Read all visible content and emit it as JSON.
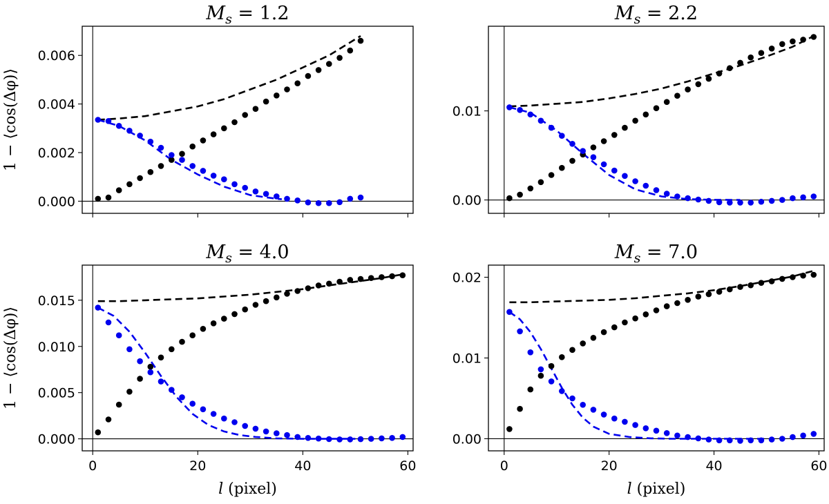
{
  "chart_data": [
    {
      "type": "scatter",
      "title": "M_s = 1.2",
      "title_parts": {
        "symbol": "M",
        "subscript": "s",
        "value": "1.2"
      },
      "xlabel": "",
      "ylabel": "1 − ⟨cos(Δφ)⟩",
      "xlim": [
        -2,
        61
      ],
      "ylim": [
        -0.0005,
        0.0072
      ],
      "xticks": [
        0,
        20,
        40,
        60
      ],
      "xtick_labels": [
        "",
        "",
        "",
        ""
      ],
      "yticks": [
        0,
        0.002,
        0.004,
        0.006
      ],
      "ytick_labels": [
        "0.000",
        "0.002",
        "0.004",
        "0.006"
      ],
      "series": [
        {
          "name": "black data",
          "style": "dots",
          "color": "#000000",
          "x": [
            1,
            3,
            5,
            7,
            9,
            11,
            13,
            15,
            17,
            19,
            21,
            23,
            25,
            27,
            29,
            31,
            33,
            35,
            37,
            39,
            41,
            43,
            45,
            47,
            49,
            51
          ],
          "y": [
            0.0001,
            0.00015,
            0.00045,
            0.0007,
            0.00095,
            0.0012,
            0.00145,
            0.0017,
            0.00195,
            0.00225,
            0.0025,
            0.00275,
            0.003,
            0.00325,
            0.00355,
            0.0038,
            0.0041,
            0.00435,
            0.0046,
            0.00485,
            0.00515,
            0.0054,
            0.00565,
            0.0059,
            0.0062,
            0.0066
          ]
        },
        {
          "name": "blue data",
          "style": "dots",
          "color": "#0000ee",
          "x": [
            1,
            3,
            5,
            7,
            9,
            11,
            13,
            15,
            17,
            19,
            21,
            23,
            25,
            27,
            29,
            31,
            33,
            35,
            37,
            39,
            41,
            43,
            45,
            47,
            49,
            51
          ],
          "y": [
            0.00335,
            0.0033,
            0.0031,
            0.0029,
            0.0027,
            0.00245,
            0.0022,
            0.0019,
            0.0017,
            0.00145,
            0.00125,
            0.00105,
            0.0009,
            0.0007,
            0.00055,
            0.0004,
            0.0003,
            0.0002,
            0.0001,
            3e-05,
            -5e-05,
            -8e-05,
            -8e-05,
            -4e-05,
            0.0001,
            0.00015
          ]
        },
        {
          "name": "black model",
          "style": "dashed",
          "color": "#000000",
          "x": [
            1,
            5,
            10,
            15,
            20,
            25,
            30,
            35,
            40,
            45,
            51
          ],
          "y": [
            0.00335,
            0.0034,
            0.0035,
            0.0037,
            0.0039,
            0.0042,
            0.0046,
            0.005,
            0.0055,
            0.006,
            0.0068
          ]
        },
        {
          "name": "blue model",
          "style": "dashed",
          "color": "#0000ee",
          "x": [
            1,
            5,
            10,
            15,
            20,
            25,
            30,
            35,
            36
          ],
          "y": [
            0.00335,
            0.0031,
            0.0025,
            0.0017,
            0.0011,
            0.0006,
            0.00025,
            0.0001,
            8e-05
          ]
        }
      ]
    },
    {
      "type": "scatter",
      "title": "M_s = 2.2",
      "title_parts": {
        "symbol": "M",
        "subscript": "s",
        "value": "2.2"
      },
      "xlabel": "",
      "ylabel": "",
      "xlim": [
        -3,
        61
      ],
      "ylim": [
        -0.0015,
        0.0195
      ],
      "xticks": [
        0,
        20,
        40,
        60
      ],
      "xtick_labels": [
        "",
        "",
        "",
        ""
      ],
      "yticks": [
        0,
        0.01
      ],
      "ytick_labels": [
        "0.00",
        "0.01"
      ],
      "series": [
        {
          "name": "black data",
          "style": "dots",
          "color": "#000000",
          "x": [
            1,
            3,
            5,
            7,
            9,
            11,
            13,
            15,
            17,
            19,
            21,
            23,
            25,
            27,
            29,
            31,
            33,
            35,
            37,
            39,
            41,
            43,
            45,
            47,
            49,
            51,
            53,
            55,
            57,
            59
          ],
          "y": [
            0.0002,
            0.0006,
            0.0013,
            0.002,
            0.0028,
            0.0036,
            0.0044,
            0.0051,
            0.0059,
            0.0066,
            0.0073,
            0.0081,
            0.0089,
            0.0096,
            0.0103,
            0.011,
            0.0117,
            0.0124,
            0.013,
            0.0136,
            0.0142,
            0.0148,
            0.0154,
            0.016,
            0.0165,
            0.017,
            0.0175,
            0.0178,
            0.018,
            0.0183
          ]
        },
        {
          "name": "blue data",
          "style": "dots",
          "color": "#0000ee",
          "x": [
            1,
            3,
            5,
            7,
            9,
            11,
            13,
            15,
            17,
            19,
            21,
            23,
            25,
            27,
            29,
            31,
            33,
            35,
            37,
            39,
            41,
            43,
            45,
            47,
            49,
            51,
            53,
            55,
            57,
            59
          ],
          "y": [
            0.0104,
            0.0101,
            0.0096,
            0.0089,
            0.0081,
            0.0072,
            0.0063,
            0.0055,
            0.0048,
            0.004,
            0.0033,
            0.0027,
            0.0021,
            0.0016,
            0.0011,
            0.0007,
            0.0004,
            0.0002,
            5e-05,
            -0.0001,
            -0.00025,
            -0.0003,
            -0.0003,
            -0.0003,
            -0.0002,
            -0.0001,
            0,
            0.0002,
            0.0003,
            0.0004
          ]
        },
        {
          "name": "black model",
          "style": "dashed",
          "color": "#000000",
          "x": [
            1,
            5,
            10,
            15,
            20,
            25,
            30,
            35,
            40,
            45,
            50,
            55,
            59
          ],
          "y": [
            0.0105,
            0.0106,
            0.0108,
            0.011,
            0.0114,
            0.0119,
            0.0125,
            0.0133,
            0.0142,
            0.0151,
            0.0161,
            0.0172,
            0.0184
          ]
        },
        {
          "name": "blue model",
          "style": "dashed",
          "color": "#0000ee",
          "x": [
            1,
            5,
            10,
            15,
            20,
            25,
            30,
            35,
            40,
            45
          ],
          "y": [
            0.0104,
            0.0098,
            0.0078,
            0.0052,
            0.0028,
            0.0012,
            0.0004,
            0.0001,
            2e-05,
            0
          ]
        }
      ]
    },
    {
      "type": "scatter",
      "title": "M_s = 4.0",
      "title_parts": {
        "symbol": "M",
        "subscript": "s",
        "value": "4.0"
      },
      "xlabel": "l (pixel)",
      "xlabel_parts": {
        "symbol": "l",
        "unit": "(pixel)"
      },
      "ylabel": "1 − ⟨cos(Δφ)⟩",
      "xlim": [
        -2,
        61
      ],
      "ylim": [
        -0.0013,
        0.0188
      ],
      "xticks": [
        0,
        20,
        40,
        60
      ],
      "xtick_labels": [
        "0",
        "20",
        "40",
        "60"
      ],
      "yticks": [
        0,
        0.005,
        0.01,
        0.015
      ],
      "ytick_labels": [
        "0.000",
        "0.005",
        "0.010",
        "0.015"
      ],
      "series": [
        {
          "name": "black data",
          "style": "dots",
          "color": "#000000",
          "x": [
            1,
            3,
            5,
            7,
            9,
            11,
            13,
            15,
            17,
            19,
            21,
            23,
            25,
            27,
            29,
            31,
            33,
            35,
            37,
            39,
            41,
            43,
            45,
            47,
            49,
            51,
            53,
            55,
            57,
            59
          ],
          "y": [
            0.0007,
            0.0021,
            0.0037,
            0.0051,
            0.0065,
            0.0078,
            0.0088,
            0.0097,
            0.0105,
            0.0112,
            0.0119,
            0.0125,
            0.013,
            0.0135,
            0.014,
            0.0145,
            0.0149,
            0.0153,
            0.0157,
            0.016,
            0.0163,
            0.0166,
            0.0168,
            0.017,
            0.0172,
            0.0173,
            0.0174,
            0.0175,
            0.0176,
            0.0177
          ]
        },
        {
          "name": "blue data",
          "style": "dots",
          "color": "#0000ee",
          "x": [
            1,
            3,
            5,
            7,
            9,
            11,
            13,
            15,
            17,
            19,
            21,
            23,
            25,
            27,
            29,
            31,
            33,
            35,
            37,
            39,
            41,
            43,
            45,
            47,
            49,
            51,
            53,
            55,
            57,
            59
          ],
          "y": [
            0.0142,
            0.0126,
            0.0112,
            0.0097,
            0.0084,
            0.0072,
            0.0062,
            0.0053,
            0.0045,
            0.0038,
            0.0032,
            0.0027,
            0.0022,
            0.0018,
            0.0014,
            0.0011,
            0.0008,
            0.0006,
            0.0004,
            0.0002,
            0.0001,
            3e-05,
            -3e-05,
            -6e-05,
            -6e-05,
            -4e-05,
            0,
            5e-05,
            0.0001,
            0.0002
          ]
        },
        {
          "name": "black model",
          "style": "dashed",
          "color": "#000000",
          "x": [
            1,
            5,
            10,
            15,
            20,
            25,
            30,
            35,
            40,
            45,
            50,
            55,
            59
          ],
          "y": [
            0.0149,
            0.0149,
            0.015,
            0.0151,
            0.0152,
            0.0154,
            0.0156,
            0.0159,
            0.0162,
            0.0166,
            0.017,
            0.0174,
            0.0178
          ]
        },
        {
          "name": "blue model",
          "style": "dashed",
          "color": "#0000ee",
          "x": [
            1,
            4,
            7,
            10,
            13,
            16,
            19,
            22,
            25,
            28,
            31,
            35,
            40,
            45,
            50
          ],
          "y": [
            0.0142,
            0.0133,
            0.0116,
            0.0093,
            0.0068,
            0.0045,
            0.0027,
            0.0015,
            0.0008,
            0.0004,
            0.0002,
            5e-05,
            0,
            0,
            0
          ]
        }
      ]
    },
    {
      "type": "scatter",
      "title": "M_s = 7.0",
      "title_parts": {
        "symbol": "M",
        "subscript": "s",
        "value": "7.0"
      },
      "xlabel": "l (pixel)",
      "xlabel_parts": {
        "symbol": "l",
        "unit": "(pixel)"
      },
      "ylabel": "",
      "xlim": [
        -3,
        61
      ],
      "ylim": [
        -0.0015,
        0.0215
      ],
      "xticks": [
        0,
        20,
        40,
        60
      ],
      "xtick_labels": [
        "0",
        "20",
        "40",
        "60"
      ],
      "yticks": [
        0,
        0.01,
        0.02
      ],
      "ytick_labels": [
        "0.00",
        "0.01",
        "0.02"
      ],
      "series": [
        {
          "name": "black data",
          "style": "dots",
          "color": "#000000",
          "x": [
            1,
            3,
            5,
            7,
            9,
            11,
            13,
            15,
            17,
            19,
            21,
            23,
            25,
            27,
            29,
            31,
            33,
            35,
            37,
            39,
            41,
            43,
            45,
            47,
            49,
            51,
            53,
            55,
            57,
            59
          ],
          "y": [
            0.0012,
            0.0037,
            0.0061,
            0.0078,
            0.009,
            0.0101,
            0.011,
            0.0118,
            0.0125,
            0.0132,
            0.0138,
            0.0144,
            0.0149,
            0.0154,
            0.0159,
            0.0164,
            0.0168,
            0.0172,
            0.0176,
            0.0179,
            0.0182,
            0.0185,
            0.0188,
            0.019,
            0.0193,
            0.0195,
            0.0198,
            0.02,
            0.0202,
            0.0203
          ]
        },
        {
          "name": "blue data",
          "style": "dots",
          "color": "#0000ee",
          "x": [
            1,
            3,
            5,
            7,
            9,
            11,
            13,
            15,
            17,
            19,
            21,
            23,
            25,
            27,
            29,
            31,
            33,
            35,
            37,
            39,
            41,
            43,
            45,
            47,
            49,
            51,
            53,
            55,
            57,
            59
          ],
          "y": [
            0.0157,
            0.0133,
            0.0107,
            0.0086,
            0.0071,
            0.0059,
            0.005,
            0.0042,
            0.0036,
            0.003,
            0.0025,
            0.0021,
            0.0017,
            0.0013,
            0.001,
            0.0007,
            0.0004,
            0.0002,
            5e-05,
            -0.0001,
            -0.0002,
            -0.0002,
            -0.00025,
            -0.0002,
            -0.0002,
            -0.0001,
            0,
            0.0002,
            0.0004,
            0.0006
          ]
        },
        {
          "name": "black model",
          "style": "dashed",
          "color": "#000000",
          "x": [
            1,
            5,
            10,
            15,
            20,
            25,
            30,
            35,
            40,
            45,
            50,
            55,
            59
          ],
          "y": [
            0.0169,
            0.0169,
            0.017,
            0.0171,
            0.0172,
            0.0174,
            0.0177,
            0.018,
            0.0184,
            0.0189,
            0.0195,
            0.0201,
            0.0208
          ]
        },
        {
          "name": "blue model",
          "style": "dashed",
          "color": "#0000ee",
          "x": [
            1,
            3,
            5,
            7,
            9,
            11,
            13,
            15,
            17,
            20,
            24,
            28,
            32,
            38,
            45,
            50
          ],
          "y": [
            0.0157,
            0.0148,
            0.0132,
            0.0111,
            0.0087,
            0.0063,
            0.0042,
            0.0026,
            0.0015,
            0.0006,
            0.0002,
            5e-05,
            0,
            0,
            0,
            0
          ]
        }
      ]
    }
  ]
}
